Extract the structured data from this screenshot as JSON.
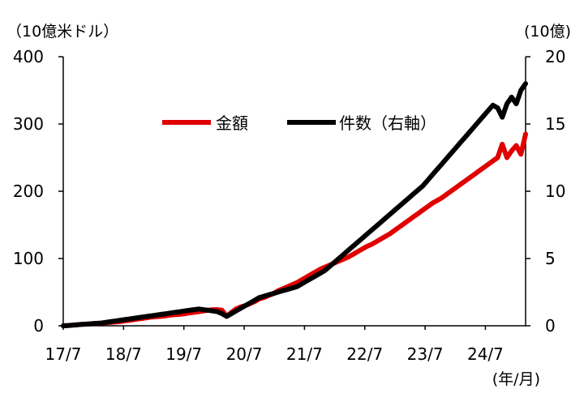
{
  "chart_data": {
    "type": "line",
    "left_axis_unit": "（10億米ドル）",
    "right_axis_unit": "(10億)",
    "x_unit": "(年/月)",
    "left_ylim": [
      0,
      400
    ],
    "right_ylim": [
      0,
      20
    ],
    "left_ticks": [
      "0",
      "100",
      "200",
      "300",
      "400"
    ],
    "right_ticks": [
      "0",
      "5",
      "10",
      "15",
      "20"
    ],
    "x_ticks": [
      "17/7",
      "18/7",
      "19/7",
      "20/7",
      "21/7",
      "22/7",
      "23/7",
      "24/7"
    ],
    "x_start": "2017-07",
    "x_end": "2025-03",
    "series": [
      {
        "name": "金額",
        "axis": "left",
        "color": "#e00000",
        "values": [
          0,
          0.5,
          1,
          1.5,
          2,
          2.5,
          3,
          3.5,
          4,
          4.5,
          5,
          5.5,
          6,
          7,
          8,
          9,
          10,
          11,
          12,
          13,
          13.5,
          14,
          15,
          16,
          16.5,
          17,
          18,
          19,
          20,
          21,
          22,
          23,
          24,
          24,
          23,
          14,
          20,
          25,
          28,
          30,
          33,
          36,
          40,
          42,
          45,
          48,
          52,
          55,
          58,
          61,
          64,
          68,
          72,
          76,
          80,
          84,
          87,
          90,
          93,
          96,
          99,
          102,
          106,
          110,
          114,
          118,
          121,
          125,
          129,
          133,
          137,
          142,
          147,
          152,
          157,
          162,
          167,
          172,
          177,
          182,
          186,
          190,
          195,
          200,
          205,
          210,
          215,
          220,
          225,
          230,
          235,
          240,
          245,
          250,
          270,
          250,
          260,
          268,
          255,
          285
        ]
      },
      {
        "name": "件数（右軸）",
        "axis": "right",
        "color": "#000000",
        "values": [
          0,
          0.02,
          0.05,
          0.08,
          0.1,
          0.12,
          0.15,
          0.18,
          0.2,
          0.25,
          0.3,
          0.35,
          0.4,
          0.45,
          0.5,
          0.55,
          0.6,
          0.65,
          0.7,
          0.75,
          0.8,
          0.85,
          0.9,
          0.95,
          1.0,
          1.05,
          1.1,
          1.15,
          1.2,
          1.25,
          1.2,
          1.15,
          1.1,
          1.05,
          0.9,
          0.7,
          0.9,
          1.1,
          1.3,
          1.5,
          1.7,
          1.9,
          2.1,
          2.2,
          2.3,
          2.4,
          2.5,
          2.6,
          2.7,
          2.8,
          2.9,
          3.1,
          3.3,
          3.5,
          3.7,
          3.9,
          4.1,
          4.4,
          4.7,
          5.0,
          5.3,
          5.6,
          5.9,
          6.2,
          6.5,
          6.8,
          7.1,
          7.4,
          7.7,
          8.0,
          8.3,
          8.6,
          8.9,
          9.2,
          9.5,
          9.8,
          10.1,
          10.4,
          10.8,
          11.2,
          11.6,
          12.0,
          12.4,
          12.8,
          13.2,
          13.6,
          14.0,
          14.4,
          14.8,
          15.2,
          15.6,
          16.0,
          16.4,
          16.2,
          15.5,
          16.5,
          17.0,
          16.5,
          17.5,
          18.0
        ]
      }
    ]
  }
}
